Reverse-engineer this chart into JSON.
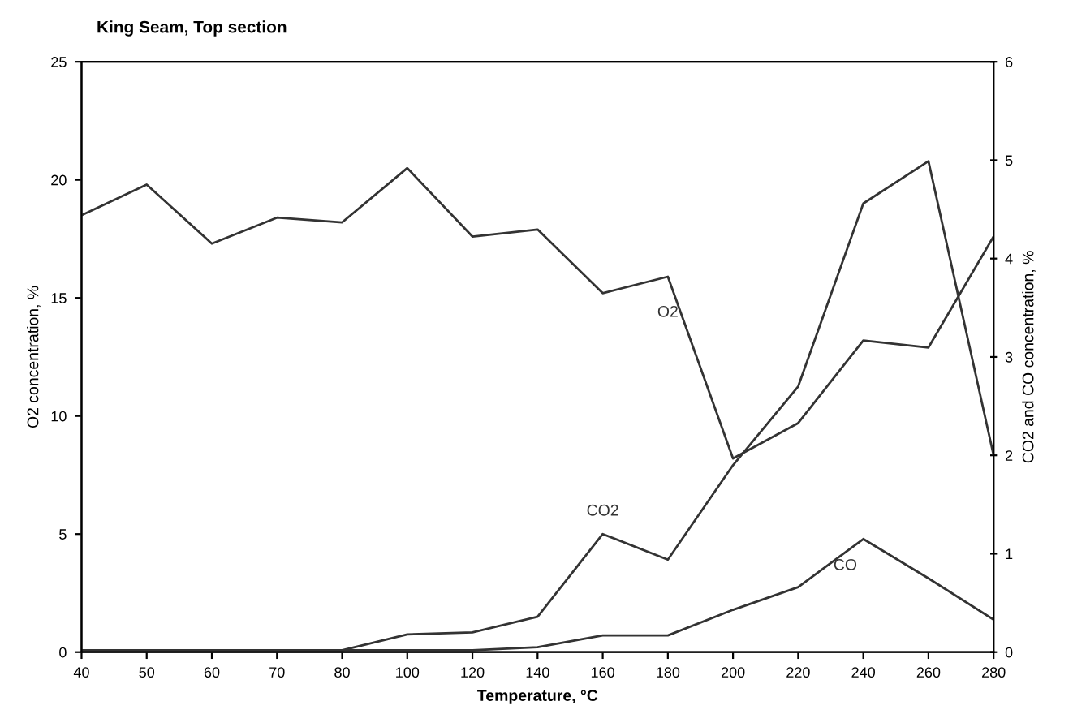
{
  "chart_data": {
    "type": "line",
    "title": "King Seam, Top section",
    "xlabel": "Temperature, °C",
    "ylabel": "O2 concentration, %",
    "y2label": "CO2 and CO concentration, %",
    "categories": [
      "40",
      "50",
      "60",
      "70",
      "80",
      "100",
      "120",
      "140",
      "160",
      "180",
      "200",
      "220",
      "240",
      "260",
      "280"
    ],
    "series": [
      {
        "name": "O2",
        "color": "#333333",
        "values": [
          18.5,
          19.8,
          17.3,
          18.4,
          18.2,
          20.5,
          17.6,
          17.9,
          15.2,
          15.9,
          8.2,
          9.7,
          13.2,
          12.9,
          17.6
        ]
      },
      {
        "name": "CO2",
        "color": "#333333",
        "axis": "y2",
        "values": [
          0.02,
          0.02,
          0.02,
          0.02,
          0.02,
          0.18,
          0.2,
          0.36,
          1.2,
          0.94,
          1.9,
          2.7,
          4.56,
          4.99,
          2.0
        ]
      },
      {
        "name": "CO",
        "color": "#333333",
        "axis": "y2",
        "values": [
          0.02,
          0.02,
          0.02,
          0.02,
          0.02,
          0.02,
          0.02,
          0.05,
          0.17,
          0.17,
          0.43,
          0.66,
          1.15,
          0.75,
          0.33
        ]
      }
    ],
    "ylim": [
      0,
      25
    ],
    "yticks": [
      0,
      5,
      10,
      15,
      20,
      25
    ],
    "y2lim": [
      0,
      6
    ],
    "y2ticks": [
      0,
      1,
      2,
      3,
      4,
      5,
      6
    ],
    "grid": false,
    "legend": false,
    "marker": "none",
    "line_style": "solid"
  }
}
